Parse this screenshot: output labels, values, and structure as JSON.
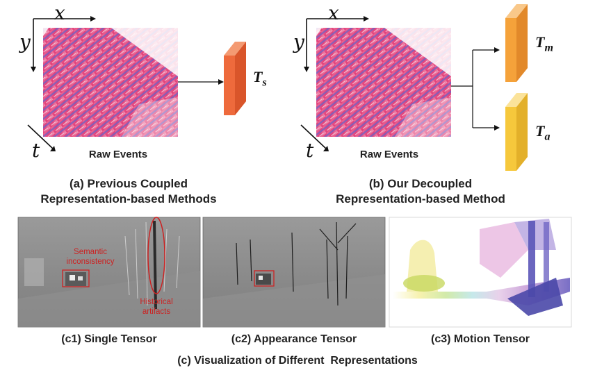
{
  "panel_a": {
    "axes": {
      "x": "x",
      "y": "y",
      "t": "t"
    },
    "raw_label": "Raw Events",
    "tensor_main": "T",
    "tensor_sub": "s",
    "caption_line1": "(a) Previous Coupled",
    "caption_line2": "Representation-based Methods"
  },
  "panel_b": {
    "axes": {
      "x": "x",
      "y": "y",
      "t": "t"
    },
    "raw_label": "Raw Events",
    "tensor_m_main": "T",
    "tensor_m_sub": "m",
    "tensor_a_main": "T",
    "tensor_a_sub": "a",
    "caption_line1": "(b) Our Decoupled",
    "caption_line2": "Representation-based Method"
  },
  "panel_c": {
    "c1_caption": "(c1) Single Tensor",
    "c2_caption": "(c2) Appearance Tensor",
    "c3_caption": "(c3) Motion Tensor",
    "annotation_semantic_line1": "Semantic",
    "annotation_semantic_line2": "inconsistency",
    "annotation_historical_line1": "Historical",
    "annotation_historical_line2": "artifacts",
    "main_caption": "(c) Visualization of Different  Representations"
  },
  "colors": {
    "event_pink": "#e8407a",
    "event_blue": "#5a5ab8",
    "tensor_s": "#ee6a3c",
    "tensor_m": "#f5a23a",
    "tensor_a": "#f6c83c",
    "annotation_red": "#cc2222",
    "gray_bg": "#8a8a8a"
  }
}
